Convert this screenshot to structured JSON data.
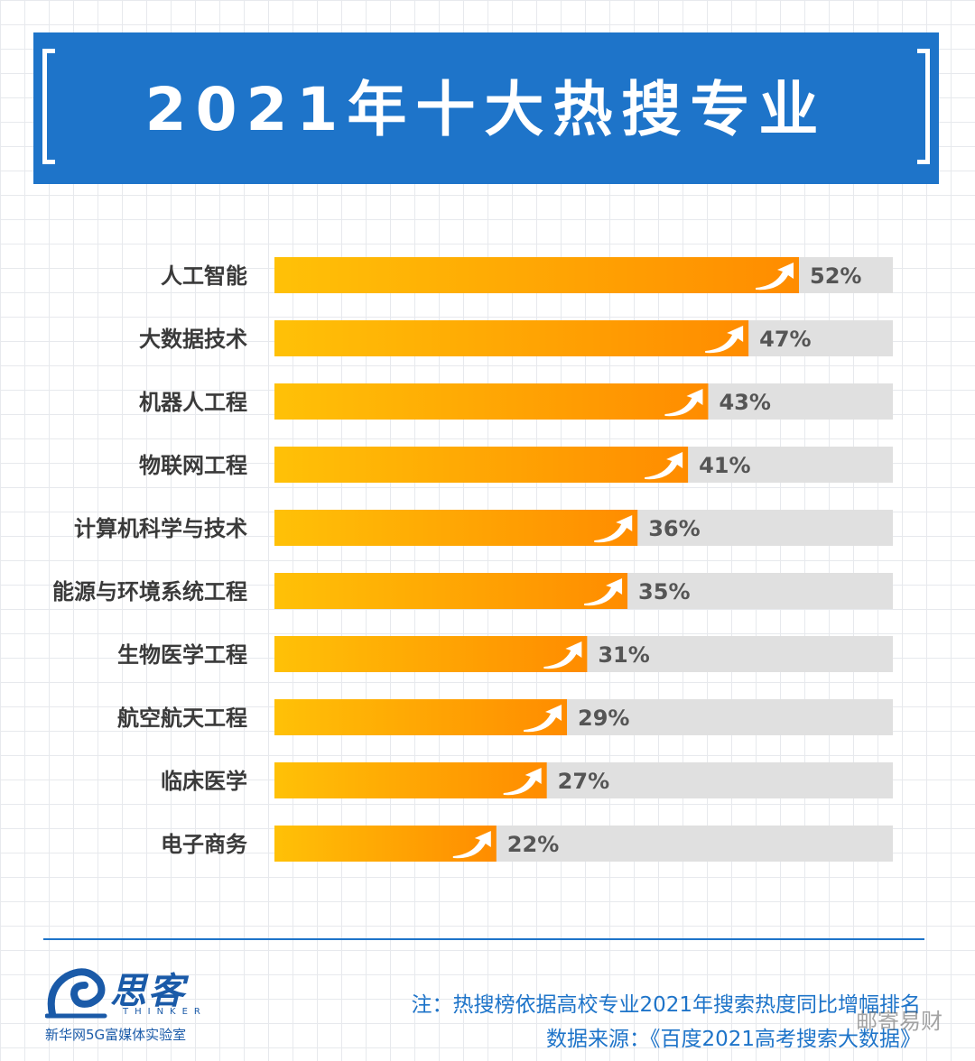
{
  "header": {
    "title": "2021年十大热搜专业"
  },
  "chart_data": {
    "type": "bar",
    "orientation": "horizontal",
    "categories": [
      "人工智能",
      "大数据技术",
      "机器人工程",
      "物联网工程",
      "计算机科学与技术",
      "能源与环境系统工程",
      "生物医学工程",
      "航空航天工程",
      "临床医学",
      "电子商务"
    ],
    "values": [
      52,
      47,
      43,
      41,
      36,
      35,
      31,
      29,
      27,
      22
    ],
    "value_labels": [
      "52%",
      "47%",
      "43%",
      "41%",
      "36%",
      "35%",
      "31%",
      "29%",
      "27%",
      "22%"
    ],
    "colors": {
      "bar_start": "#ffc107",
      "bar_end": "#ff8c00",
      "track": "#e0e0e0",
      "arrow": "#ffffff"
    },
    "grid": false,
    "legend": "none"
  },
  "footer": {
    "note": "注：热搜榜依据高校专业2021年搜索热度同比增幅排名",
    "source": "数据来源：《百度2021高考搜索大数据》",
    "watermark": "邮寄易财",
    "logo": {
      "name": "思客",
      "sub": "THINKER",
      "org": "新华网5G富媒体实验室"
    }
  },
  "colors": {
    "banner": "#1e74c9",
    "text_dark": "#3a3a3a",
    "footer_text": "#1e74c9"
  }
}
